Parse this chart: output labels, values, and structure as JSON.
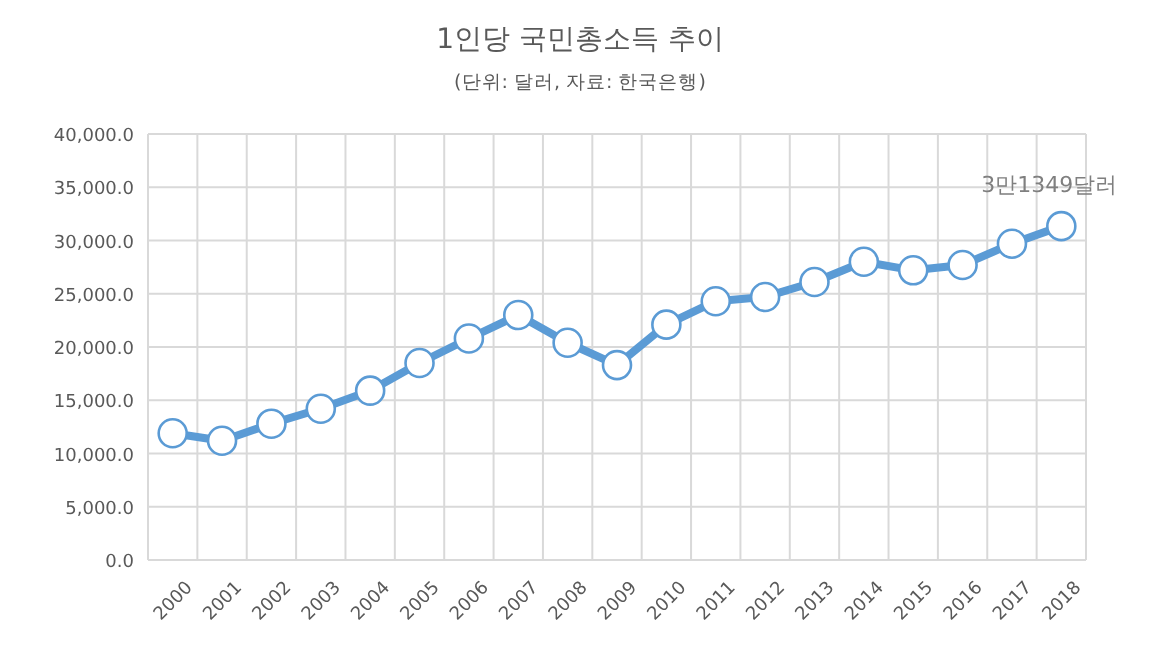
{
  "chart_data": {
    "type": "line",
    "title": "1인당 국민총소득 추이",
    "subtitle": "(단위: 달러, 자료: 한국은행)",
    "categories": [
      "2000",
      "2001",
      "2002",
      "2003",
      "2004",
      "2005",
      "2006",
      "2007",
      "2008",
      "2009",
      "2010",
      "2011",
      "2012",
      "2013",
      "2014",
      "2015",
      "2016",
      "2017",
      "2018"
    ],
    "series": [
      {
        "color": "#5b9bd5",
        "values": [
          11900,
          11200,
          12800,
          14200,
          15900,
          18500,
          20800,
          23000,
          20400,
          18300,
          22100,
          24300,
          24700,
          26100,
          28000,
          27200,
          27700,
          29700,
          31349
        ]
      }
    ],
    "ylim": [
      0,
      40000
    ],
    "yticks": [
      {
        "value": 0,
        "label": "0.0"
      },
      {
        "value": 5000,
        "label": "5,000.0"
      },
      {
        "value": 10000,
        "label": "10,000.0"
      },
      {
        "value": 15000,
        "label": "15,000.0"
      },
      {
        "value": 20000,
        "label": "20,000.0"
      },
      {
        "value": 25000,
        "label": "25,000.0"
      },
      {
        "value": 30000,
        "label": "30,000.0"
      },
      {
        "value": 35000,
        "label": "35,000.0"
      },
      {
        "value": 40000,
        "label": "40,000.0"
      }
    ],
    "annotations": [
      {
        "text": "3만1349달러",
        "x": "2018",
        "y": 31349
      }
    ],
    "grid": true,
    "marker": "circle",
    "line_style": "solid"
  }
}
